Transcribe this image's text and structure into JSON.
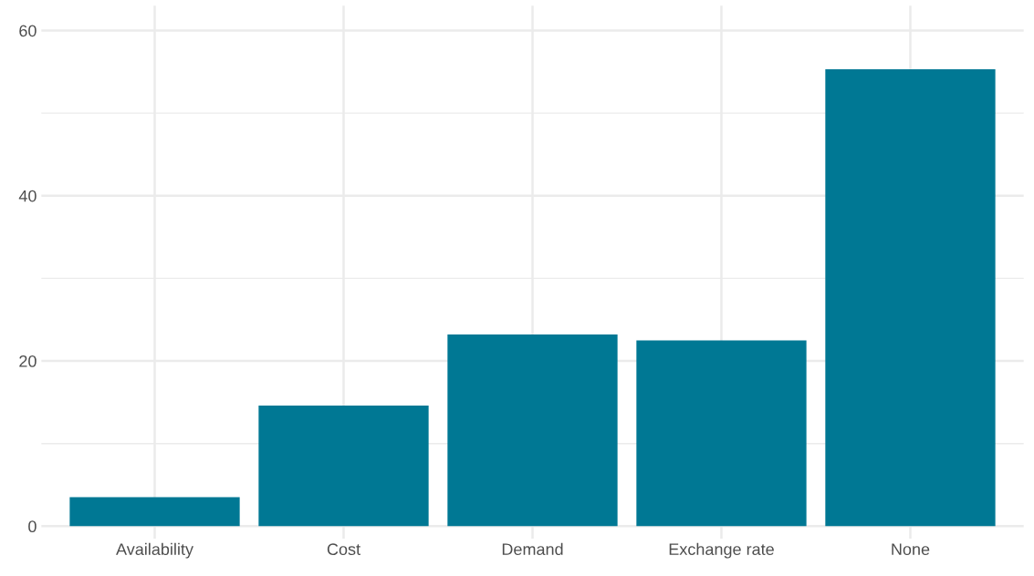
{
  "chart_data": {
    "type": "bar",
    "categories": [
      "Availability",
      "Cost",
      "Demand",
      "Exchange rate",
      "None"
    ],
    "values": [
      3.5,
      14.6,
      23.2,
      22.5,
      55.3
    ],
    "color": "#007894",
    "ylim": [
      -1.5,
      63
    ],
    "yticks": [
      0,
      {
        "value": 10,
        "label": null
      },
      20,
      {
        "value": 30,
        "label": null
      },
      40,
      {
        "value": 50,
        "label": null
      },
      60
    ],
    "grid": true
  }
}
